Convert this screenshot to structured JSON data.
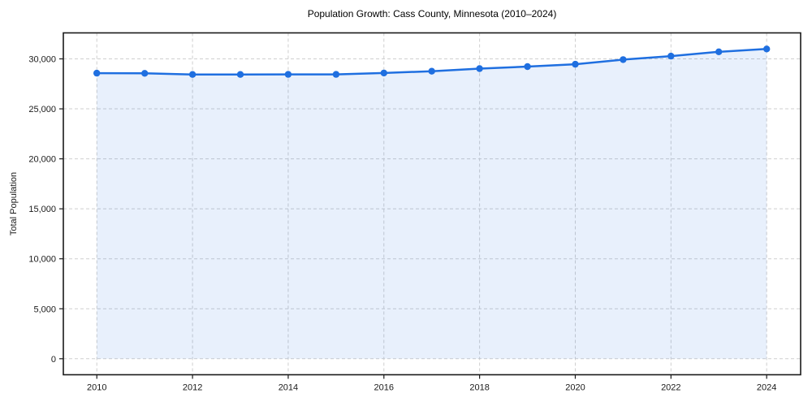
{
  "chart_data": {
    "type": "area",
    "title": "Population Growth: Cass County, Minnesota (2010–2024)",
    "ylabel": "Total Population",
    "xlabel": "",
    "series_name": "Total Population",
    "x": [
      2010,
      2011,
      2012,
      2013,
      2014,
      2015,
      2016,
      2017,
      2018,
      2019,
      2020,
      2021,
      2022,
      2023,
      2024
    ],
    "values": [
      28567,
      28551,
      28437,
      28443,
      28452,
      28448,
      28590,
      28767,
      29022,
      29230,
      29467,
      29926,
      30276,
      30704,
      30995
    ],
    "xticks": {
      "values": [
        2010,
        2012,
        2014,
        2016,
        2018,
        2020,
        2022,
        2024
      ],
      "labels": [
        "2010",
        "2012",
        "2014",
        "2016",
        "2018",
        "2020",
        "2022",
        "2024"
      ]
    },
    "yticks": {
      "values": [
        0,
        5000,
        10000,
        15000,
        20000,
        25000,
        30000
      ],
      "labels": [
        "0",
        "5,000",
        "10,000",
        "15,000",
        "20,000",
        "25,000",
        "30,000"
      ]
    },
    "xlim": [
      2009.3,
      2024.71
    ],
    "ylim": [
      -1600,
      32600
    ],
    "grid": true,
    "grid_style": "dashed",
    "legend": "none",
    "colors": {
      "line": "#1f6fe0",
      "marker": "#1f6fe0",
      "fill": "rgba(31,111,224,0.10)",
      "grid": "#cfcfcf",
      "spine": "#1a1a1a",
      "tick_text": "#1a1a1a",
      "title_text": "#000000",
      "background": "#ffffff"
    }
  }
}
